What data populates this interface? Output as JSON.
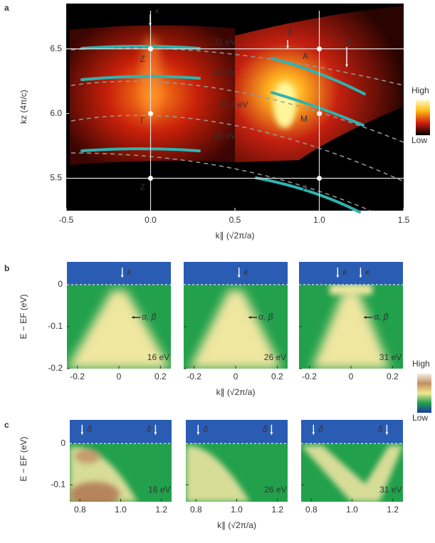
{
  "figure": {
    "panels": [
      {
        "label": "a",
        "xlabel": "k∥ (√2π/a)",
        "ylabel": "kz (4π/c)",
        "xlim": [
          -0.5,
          1.5
        ],
        "xticks": [
          -0.5,
          {
            "value": 0,
            "label": "0.0"
          },
          0.5,
          {
            "value": 1,
            "label": "1.0"
          },
          1.5
        ],
        "ylim": [
          5.25,
          6.85
        ],
        "yticks": [
          5.5,
          {
            "value": 6,
            "label": "6.0"
          },
          6.5
        ],
        "annotations": [
          "κ",
          "δ",
          "δ",
          "31 eV",
          "26 eV",
          "21.2 eV",
          "16 eV",
          "Z",
          "Γ",
          "Z",
          "A",
          "M",
          "A"
        ],
        "colorbar": [
          "High",
          "Low"
        ]
      },
      {
        "label": "b",
        "xlabel": "k∥ (√2π/a)",
        "ylabel": "E − EF (eV)",
        "ylim": [
          -0.2,
          0.054
        ],
        "yticks": [
          0,
          -0.1,
          -0.2
        ],
        "subplots": [
          {
            "xlim": [
              -0.25,
              0.25
            ],
            "xticks": [
              -0.2,
              0,
              0.2
            ],
            "annotations": [
              "κ",
              "α, β",
              "16 eV"
            ]
          },
          {
            "xlim": [
              -0.25,
              0.25
            ],
            "xticks": [
              -0.2,
              0,
              0.2
            ],
            "annotations": [
              "κ",
              "α, β",
              "26 eV"
            ]
          },
          {
            "xlim": [
              -0.25,
              0.25
            ],
            "xticks": [
              -0.2,
              0,
              0.2
            ],
            "annotations": [
              "κ",
              "κ",
              "α, β",
              "31 eV"
            ]
          }
        ],
        "colorbar": [
          "High",
          "Low"
        ]
      },
      {
        "label": "c",
        "xlabel": "k∥ (√2π/a)",
        "ylabel": "E − EF (eV)",
        "ylim": [
          -0.141,
          0.057
        ],
        "yticks": [
          0,
          -0.1
        ],
        "subplots": [
          {
            "xlim": [
              0.75,
              1.25
            ],
            "xticks": [
              0.8,
              {
                "value": 1,
                "label": "1.0"
              },
              1.2
            ],
            "annotations": [
              "δ",
              "δ",
              "16 eV"
            ]
          },
          {
            "xlim": [
              0.75,
              1.25
            ],
            "xticks": [
              0.8,
              {
                "value": 1,
                "label": "1.0"
              },
              1.2
            ],
            "annotations": [
              "δ",
              "δ",
              "26 eV"
            ]
          },
          {
            "xlim": [
              0.75,
              1.25
            ],
            "xticks": [
              0.8,
              {
                "value": 1,
                "label": "1.0"
              },
              1.2
            ],
            "annotations": [
              "δ",
              "δ",
              "31 eV"
            ]
          }
        ]
      }
    ]
  }
}
